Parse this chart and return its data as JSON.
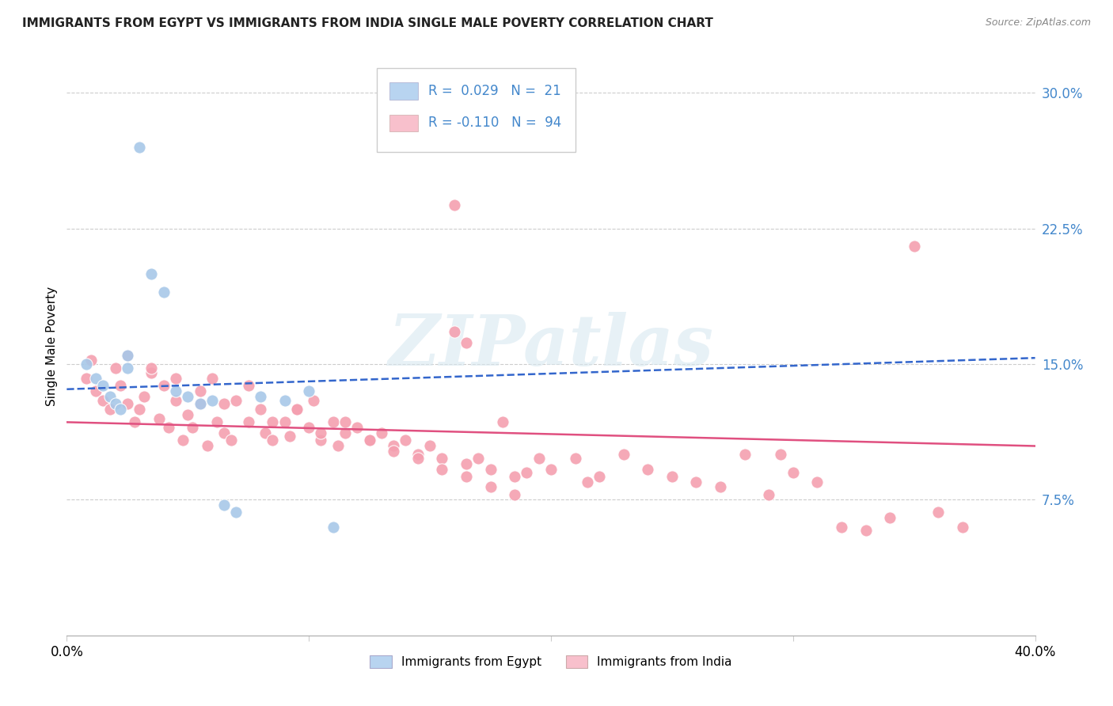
{
  "title": "IMMIGRANTS FROM EGYPT VS IMMIGRANTS FROM INDIA SINGLE MALE POVERTY CORRELATION CHART",
  "source": "Source: ZipAtlas.com",
  "ylabel": "Single Male Poverty",
  "xmin": 0.0,
  "xmax": 0.4,
  "ymin": 0.0,
  "ymax": 0.32,
  "yticks": [
    0.075,
    0.15,
    0.225,
    0.3
  ],
  "ytick_labels": [
    "7.5%",
    "15.0%",
    "22.5%",
    "30.0%"
  ],
  "egypt_R": 0.029,
  "egypt_N": 21,
  "india_R": -0.11,
  "india_N": 94,
  "egypt_color": "#a8c8e8",
  "india_color": "#f4a0b0",
  "egypt_line_color": "#3366cc",
  "india_line_color": "#e05080",
  "egypt_scatter_x": [
    0.008,
    0.012,
    0.015,
    0.018,
    0.02,
    0.022,
    0.025,
    0.03,
    0.035,
    0.04,
    0.045,
    0.05,
    0.055,
    0.06,
    0.065,
    0.07,
    0.08,
    0.09,
    0.1,
    0.11,
    0.025
  ],
  "egypt_scatter_y": [
    0.15,
    0.142,
    0.138,
    0.132,
    0.128,
    0.125,
    0.148,
    0.27,
    0.2,
    0.19,
    0.135,
    0.132,
    0.128,
    0.13,
    0.072,
    0.068,
    0.132,
    0.13,
    0.135,
    0.06,
    0.155
  ],
  "india_scatter_x": [
    0.008,
    0.01,
    0.012,
    0.015,
    0.018,
    0.02,
    0.022,
    0.025,
    0.028,
    0.03,
    0.032,
    0.035,
    0.038,
    0.04,
    0.042,
    0.045,
    0.048,
    0.05,
    0.052,
    0.055,
    0.058,
    0.06,
    0.062,
    0.065,
    0.068,
    0.07,
    0.075,
    0.08,
    0.082,
    0.085,
    0.09,
    0.092,
    0.095,
    0.1,
    0.102,
    0.105,
    0.11,
    0.112,
    0.115,
    0.12,
    0.125,
    0.13,
    0.135,
    0.14,
    0.145,
    0.15,
    0.155,
    0.16,
    0.165,
    0.17,
    0.175,
    0.18,
    0.185,
    0.19,
    0.195,
    0.2,
    0.21,
    0.215,
    0.22,
    0.23,
    0.24,
    0.25,
    0.26,
    0.27,
    0.28,
    0.29,
    0.3,
    0.31,
    0.32,
    0.33,
    0.34,
    0.35,
    0.36,
    0.37,
    0.025,
    0.035,
    0.045,
    0.055,
    0.065,
    0.075,
    0.085,
    0.095,
    0.105,
    0.115,
    0.125,
    0.135,
    0.145,
    0.155,
    0.165,
    0.175,
    0.185,
    0.16,
    0.165,
    0.295
  ],
  "india_scatter_y": [
    0.142,
    0.152,
    0.135,
    0.13,
    0.125,
    0.148,
    0.138,
    0.128,
    0.118,
    0.125,
    0.132,
    0.145,
    0.12,
    0.138,
    0.115,
    0.13,
    0.108,
    0.122,
    0.115,
    0.128,
    0.105,
    0.142,
    0.118,
    0.112,
    0.108,
    0.13,
    0.118,
    0.125,
    0.112,
    0.108,
    0.118,
    0.11,
    0.125,
    0.115,
    0.13,
    0.108,
    0.118,
    0.105,
    0.112,
    0.115,
    0.108,
    0.112,
    0.105,
    0.108,
    0.1,
    0.105,
    0.098,
    0.168,
    0.095,
    0.098,
    0.092,
    0.118,
    0.088,
    0.09,
    0.098,
    0.092,
    0.098,
    0.085,
    0.088,
    0.1,
    0.092,
    0.088,
    0.085,
    0.082,
    0.1,
    0.078,
    0.09,
    0.085,
    0.06,
    0.058,
    0.065,
    0.215,
    0.068,
    0.06,
    0.155,
    0.148,
    0.142,
    0.135,
    0.128,
    0.138,
    0.118,
    0.125,
    0.112,
    0.118,
    0.108,
    0.102,
    0.098,
    0.092,
    0.088,
    0.082,
    0.078,
    0.238,
    0.162,
    0.1
  ],
  "watermark_text": "ZIPatlas",
  "legend_egypt_color": "#b8d4f0",
  "legend_india_color": "#f8c0cc"
}
